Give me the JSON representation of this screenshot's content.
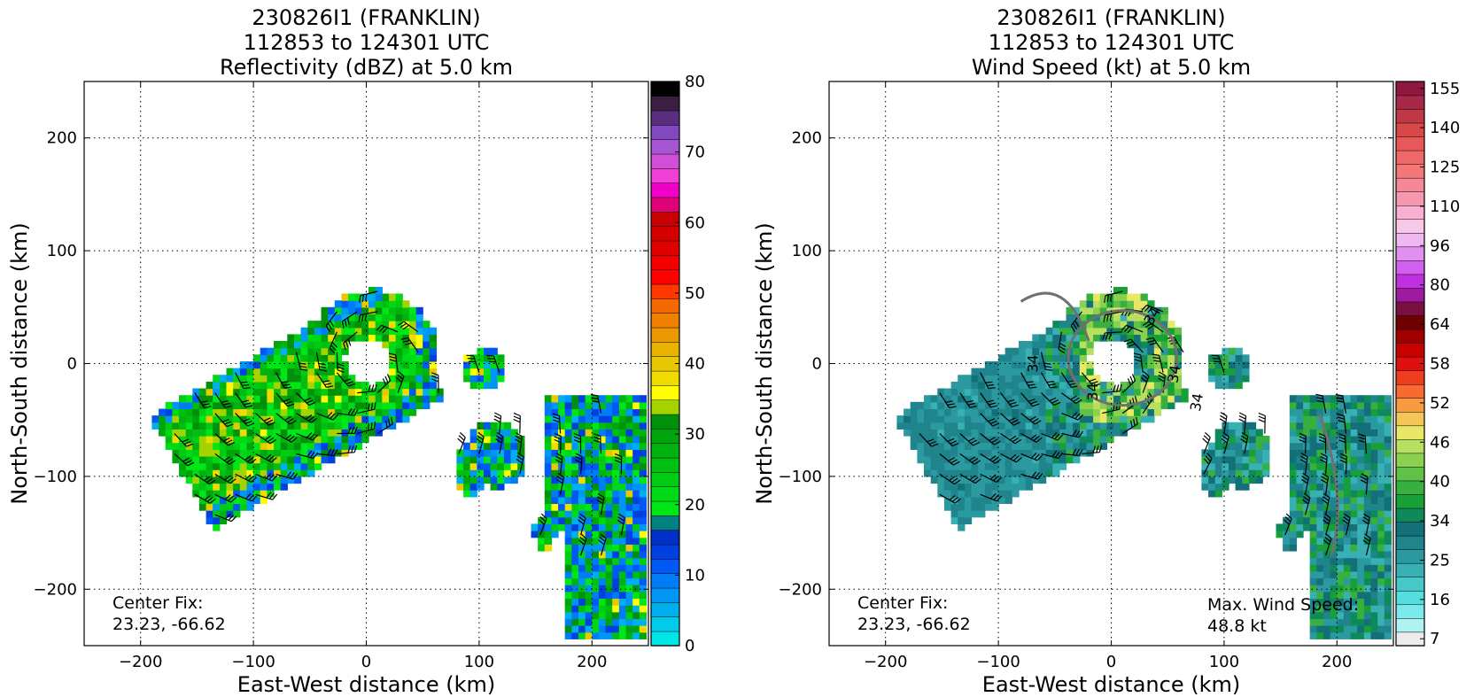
{
  "chart_data": [
    {
      "type": "heatmap",
      "title": [
        "230826I1 (FRANKLIN)",
        "112853 to 124301 UTC",
        "Reflectivity (dBZ) at 5.0 km"
      ],
      "xlabel": "East-West distance (km)",
      "ylabel": "North-South distance (km)",
      "xlim": [
        -250,
        250
      ],
      "ylim": [
        -250,
        250
      ],
      "xticks": [
        -200,
        -100,
        0,
        100,
        200
      ],
      "yticks": [
        -200,
        -100,
        0,
        100,
        200
      ],
      "xtick_labels": [
        "−200",
        "−100",
        "0",
        "100",
        "200"
      ],
      "ytick_labels": [
        "−200",
        "−100",
        "0",
        "100",
        "200"
      ],
      "grid": true,
      "annotation": [
        "Center Fix:",
        "23.23, -66.62"
      ],
      "colorbar": {
        "colors": [
          "#00e5e5",
          "#00cbe8",
          "#00b0ee",
          "#0096f3",
          "#007cf7",
          "#0059f3",
          "#0040e0",
          "#0030c8",
          "#008080",
          "#00e617",
          "#00d915",
          "#00cc12",
          "#00bf10",
          "#00b20e",
          "#00a50c",
          "#009009",
          "#a4d300",
          "#ffff00",
          "#f0dc00",
          "#e8c800",
          "#e8b400",
          "#ec9800",
          "#f08000",
          "#f46800",
          "#ff3800",
          "#ff0000",
          "#f20000",
          "#e00000",
          "#d40000",
          "#c80000",
          "#e0007a",
          "#f000c8",
          "#ef3fd7",
          "#d14fd7",
          "#a855d4",
          "#8347bf",
          "#5b2d7e",
          "#3a1f43",
          "#000000"
        ],
        "tick_values": [
          0,
          10,
          20,
          30,
          40,
          50,
          60,
          70,
          80
        ],
        "tick_labels": [
          "0",
          "10",
          "20",
          "30",
          "40",
          "50",
          "60",
          "70",
          "80"
        ],
        "vmin": 0,
        "vmax": 80
      }
    },
    {
      "type": "heatmap",
      "title": [
        "230826I1 (FRANKLIN)",
        "112853 to 124301 UTC",
        "Wind Speed (kt) at 5.0 km"
      ],
      "xlabel": "East-West distance (km)",
      "ylabel": "North-South distance (km)",
      "xlim": [
        -250,
        250
      ],
      "ylim": [
        -250,
        250
      ],
      "xticks": [
        -200,
        -100,
        0,
        100,
        200
      ],
      "yticks": [
        -200,
        -100,
        0,
        100,
        200
      ],
      "xtick_labels": [
        "−200",
        "−100",
        "0",
        "100",
        "200"
      ],
      "ytick_labels": [
        "−200",
        "−100",
        "0",
        "100",
        "200"
      ],
      "grid": true,
      "annotation": [
        "Center Fix:",
        "23.23, -66.62"
      ],
      "annotation_right": [
        "Max. Wind Speed:",
        "48.8 kt"
      ],
      "contour_labels": [
        "34",
        "34",
        "34",
        "34",
        "34"
      ],
      "colorbar": {
        "colors": [
          "#ececec",
          "#b0f2f2",
          "#7aeaea",
          "#55dede",
          "#45c8c8",
          "#38b0b4",
          "#2b9aa0",
          "#1f848c",
          "#137078",
          "#0e8a5a",
          "#18a038",
          "#38b040",
          "#60c048",
          "#8cd050",
          "#b8e060",
          "#e8e866",
          "#f4c858",
          "#f89a40",
          "#f86a30",
          "#f03c20",
          "#e01010",
          "#c80000",
          "#a00000",
          "#700000",
          "#7a1040",
          "#a01aa0",
          "#c030e0",
          "#d060f0",
          "#e090f0",
          "#f0b8f0",
          "#f8c8e8",
          "#fab0d0",
          "#f898b0",
          "#f48898",
          "#f47878",
          "#f06868",
          "#e85858",
          "#d84848",
          "#c03848",
          "#a82848",
          "#901840"
        ],
        "tick_values": [
          7,
          16,
          25,
          34,
          40,
          46,
          52,
          58,
          64,
          80,
          96,
          110,
          125,
          140,
          155
        ],
        "tick_labels": [
          "7",
          "16",
          "25",
          "34",
          "40",
          "46",
          "52",
          "58",
          "64",
          "80",
          "96",
          "110",
          "125",
          "140",
          "155"
        ]
      }
    }
  ]
}
